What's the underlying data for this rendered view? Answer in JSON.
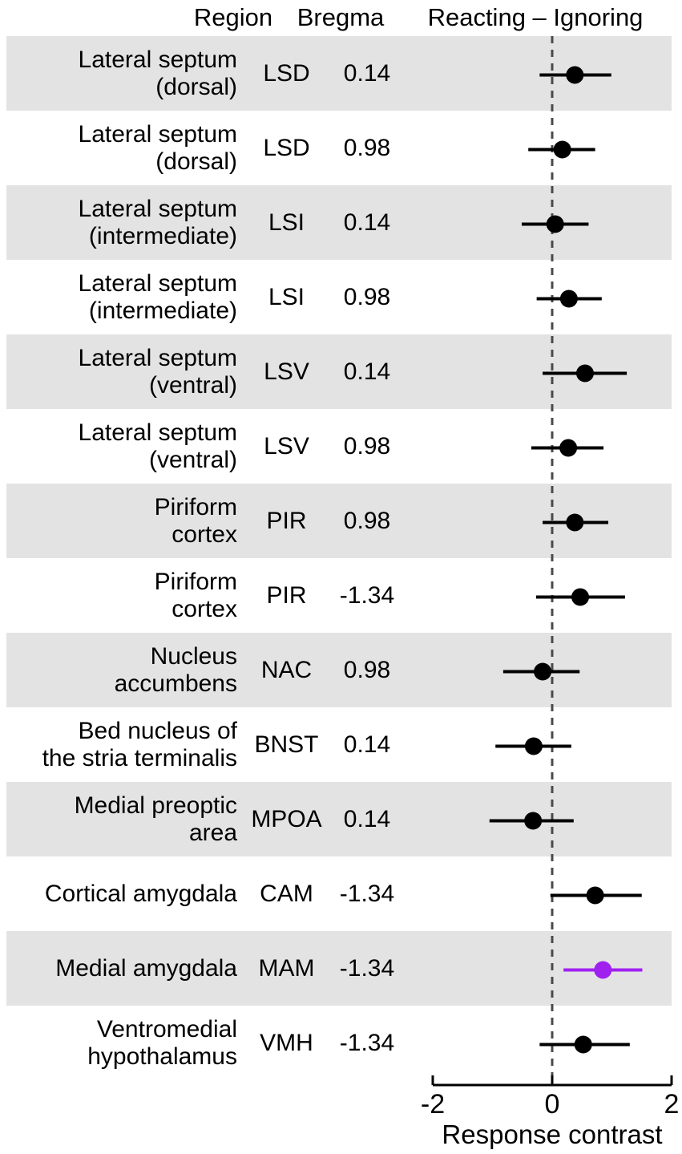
{
  "header": {
    "region": "Region",
    "bregma": "Bregma",
    "contrast": "Reacting – Ignoring"
  },
  "colors": {
    "band": "#e3e3e3",
    "point": "#000000",
    "highlight": "#a020f0",
    "zero_line": "#4a4a4a",
    "axis": "#000000"
  },
  "chart_data": {
    "type": "scatter",
    "subtype": "forest-plot",
    "title": "",
    "xlabel": "Response contrast",
    "ylabel": "",
    "xlim": [
      -2,
      2
    ],
    "x_ticks": [
      -2,
      0,
      2
    ],
    "zero_reference_line": 0,
    "grid": false,
    "legend": "none",
    "columns": [
      "Region",
      "Bregma",
      "Reacting – Ignoring"
    ],
    "rows": [
      {
        "region_lines": [
          "Lateral septum",
          "(dorsal)"
        ],
        "abbr": "LSD",
        "bregma": "0.14",
        "estimate": 0.38,
        "ci_low": -0.21,
        "ci_high": 0.99,
        "color": "black"
      },
      {
        "region_lines": [
          "Lateral septum",
          "(dorsal)"
        ],
        "abbr": "LSD",
        "bregma": "0.98",
        "estimate": 0.17,
        "ci_low": -0.4,
        "ci_high": 0.72,
        "color": "black"
      },
      {
        "region_lines": [
          "Lateral septum",
          "(intermediate)"
        ],
        "abbr": "LSI",
        "bregma": "0.14",
        "estimate": 0.05,
        "ci_low": -0.51,
        "ci_high": 0.61,
        "color": "black"
      },
      {
        "region_lines": [
          "Lateral septum",
          "(intermediate)"
        ],
        "abbr": "LSI",
        "bregma": "0.98",
        "estimate": 0.28,
        "ci_low": -0.26,
        "ci_high": 0.83,
        "color": "black"
      },
      {
        "region_lines": [
          "Lateral septum",
          "(ventral)"
        ],
        "abbr": "LSV",
        "bregma": "0.14",
        "estimate": 0.55,
        "ci_low": -0.16,
        "ci_high": 1.25,
        "color": "black"
      },
      {
        "region_lines": [
          "Lateral septum",
          "(ventral)"
        ],
        "abbr": "LSV",
        "bregma": "0.98",
        "estimate": 0.27,
        "ci_low": -0.35,
        "ci_high": 0.86,
        "color": "black"
      },
      {
        "region_lines": [
          "Piriform",
          "cortex"
        ],
        "abbr": "PIR",
        "bregma": "0.98",
        "estimate": 0.38,
        "ci_low": -0.16,
        "ci_high": 0.94,
        "color": "black"
      },
      {
        "region_lines": [
          "Piriform",
          "cortex"
        ],
        "abbr": "PIR",
        "bregma": "-1.34",
        "estimate": 0.47,
        "ci_low": -0.27,
        "ci_high": 1.22,
        "color": "black"
      },
      {
        "region_lines": [
          "Nucleus",
          "accumbens"
        ],
        "abbr": "NAC",
        "bregma": "0.98",
        "estimate": -0.16,
        "ci_low": -0.82,
        "ci_high": 0.46,
        "color": "black"
      },
      {
        "region_lines": [
          "Bed nucleus of",
          "the stria terminalis"
        ],
        "abbr": "BNST",
        "bregma": "0.14",
        "estimate": -0.31,
        "ci_low": -0.95,
        "ci_high": 0.32,
        "color": "black"
      },
      {
        "region_lines": [
          "Medial preoptic",
          "area"
        ],
        "abbr": "MPOA",
        "bregma": "0.14",
        "estimate": -0.32,
        "ci_low": -1.05,
        "ci_high": 0.36,
        "color": "black"
      },
      {
        "region_lines": [
          "Cortical amygdala"
        ],
        "abbr": "CAM",
        "bregma": "-1.34",
        "estimate": 0.72,
        "ci_low": -0.03,
        "ci_high": 1.5,
        "color": "black"
      },
      {
        "region_lines": [
          "Medial amygdala"
        ],
        "abbr": "MAM",
        "bregma": "-1.34",
        "estimate": 0.85,
        "ci_low": 0.19,
        "ci_high": 1.51,
        "color": "purple"
      },
      {
        "region_lines": [
          "Ventromedial",
          "hypothalamus"
        ],
        "abbr": "VMH",
        "bregma": "-1.34",
        "estimate": 0.52,
        "ci_low": -0.21,
        "ci_high": 1.3,
        "color": "black"
      }
    ]
  }
}
